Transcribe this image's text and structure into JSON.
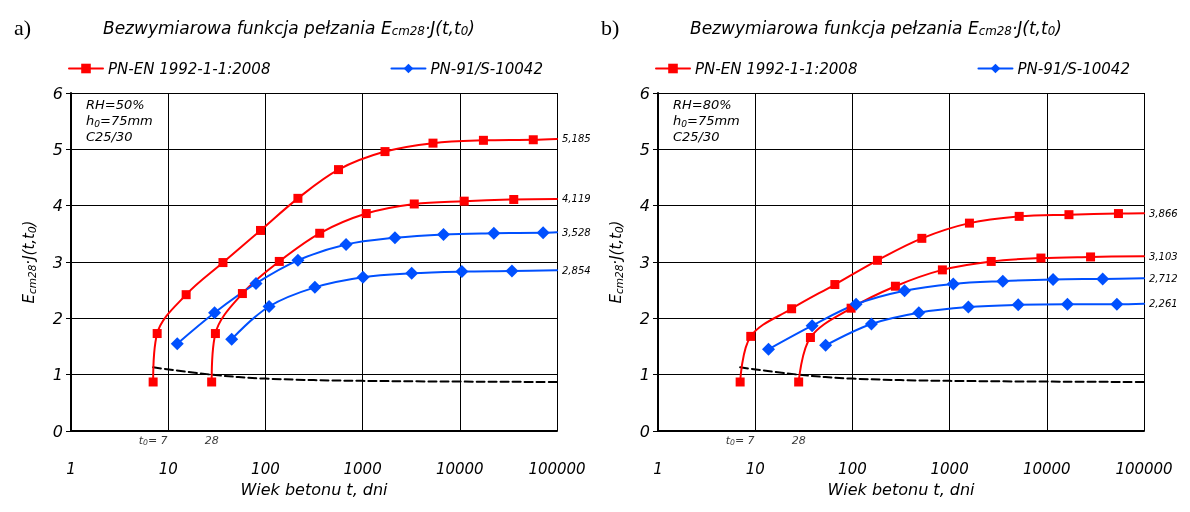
{
  "chart_data": [
    {
      "type": "line",
      "title": "Bezwymiarowa funkcja pełzania E$_{cm28}$·J(t,t$_{0}$)",
      "xlabel": "Wiek betonu t, dni",
      "ylabel": "E$_{cm28}$·J(t,t$_{0}$)",
      "log": "x",
      "xlim": [
        1,
        100000
      ],
      "xticks": [
        1,
        10,
        100,
        1000,
        10000,
        100000
      ],
      "ylim": [
        0,
        6
      ],
      "yticks": [
        0,
        1,
        2,
        3,
        4,
        5,
        6
      ],
      "grid": true,
      "legend": "top",
      "line_style": "solid",
      "series": [
        {
          "name": "PN-EN 1992-1-1:2008",
          "color": "#ff0000",
          "marker": "square",
          "x": [
            7,
            7.7,
            15.3,
            36.6,
            89,
            216,
            565,
            1700,
            5300,
            17500,
            57000,
            100000
          ],
          "values": [
            0.87,
            1.73,
            2.42,
            2.99,
            3.56,
            4.13,
            4.64,
            4.96,
            5.11,
            5.16,
            5.17,
            5.185
          ]
        },
        {
          "color": "#ff0000",
          "marker": "square",
          "x": [
            28,
            30.6,
            58,
            139,
            362,
            1090,
            3400,
            11100,
            35900,
            100000
          ],
          "values": [
            0.87,
            1.73,
            2.44,
            3.01,
            3.51,
            3.86,
            4.03,
            4.08,
            4.11,
            4.119
          ]
        },
        {
          "name": "PN-91/S-10042",
          "color": "#0050ff",
          "marker": "diamond",
          "x": [
            12.4,
            30,
            80,
            216,
            676,
            2150,
            6800,
            22400,
            72000,
            100000
          ],
          "values": [
            1.55,
            2.1,
            2.62,
            3.03,
            3.31,
            3.43,
            3.49,
            3.51,
            3.52,
            3.528
          ]
        },
        {
          "color": "#0050ff",
          "marker": "diamond",
          "x": [
            45,
            109,
            323,
            1010,
            3200,
            10500,
            34400,
            100000
          ],
          "values": [
            1.63,
            2.21,
            2.55,
            2.73,
            2.8,
            2.83,
            2.84,
            2.854
          ]
        },
        {
          "color": "#000000",
          "marker": "none",
          "line_style": "dashed",
          "x": [
            7,
            28,
            100,
            1000,
            100000
          ],
          "values": [
            1.13,
            1.0,
            0.93,
            0.89,
            0.87
          ]
        }
      ],
      "annotations": [
        "a)",
        "RH=50%",
        "h$_{0}$=75mm",
        "C25/30",
        "t$_{0}$= 7",
        "28",
        "5,185",
        "4,119",
        "3,528",
        "2,854"
      ]
    },
    {
      "type": "line",
      "title": "Bezwymiarowa funkcja pełzania E$_{cm28}$·J(t,t$_{0}$)",
      "xlabel": "Wiek betonu t, dni",
      "ylabel": "E$_{cm28}$·J(t,t$_{0}$)",
      "log": "x",
      "xlim": [
        1,
        100000
      ],
      "xticks": [
        1,
        10,
        100,
        1000,
        10000,
        100000
      ],
      "ylim": [
        0,
        6
      ],
      "yticks": [
        0,
        1,
        2,
        3,
        4,
        5,
        6
      ],
      "grid": true,
      "legend": "top",
      "line_style": "solid",
      "series": [
        {
          "name": "PN-EN 1992-1-1:2008",
          "color": "#ff0000",
          "marker": "square",
          "x": [
            7,
            9,
            23.7,
            66,
            181,
            518,
            1600,
            5200,
            16900,
            54600,
            100000
          ],
          "values": [
            0.87,
            1.68,
            2.17,
            2.6,
            3.03,
            3.42,
            3.69,
            3.81,
            3.84,
            3.86,
            3.866
          ]
        },
        {
          "color": "#ff0000",
          "marker": "square",
          "x": [
            28,
            37,
            97,
            277,
            843,
            2680,
            8700,
            28200,
            100000
          ],
          "values": [
            0.87,
            1.66,
            2.18,
            2.57,
            2.86,
            3.01,
            3.07,
            3.09,
            3.103
          ]
        },
        {
          "name": "PN-91/S-10042",
          "color": "#0050ff",
          "marker": "diamond",
          "x": [
            13.7,
            38.5,
            109,
            344,
            1090,
            3530,
            11600,
            37600,
            100000
          ],
          "values": [
            1.45,
            1.87,
            2.25,
            2.49,
            2.61,
            2.66,
            2.69,
            2.7,
            2.712
          ]
        },
        {
          "color": "#0050ff",
          "marker": "diamond",
          "x": [
            53,
            157,
            482,
            1560,
            5080,
            16300,
            52600,
            100000
          ],
          "values": [
            1.52,
            1.9,
            2.1,
            2.2,
            2.24,
            2.25,
            2.25,
            2.261
          ]
        },
        {
          "color": "#000000",
          "marker": "none",
          "line_style": "dashed",
          "x": [
            7,
            28,
            100,
            1000,
            100000
          ],
          "values": [
            1.13,
            1.0,
            0.93,
            0.89,
            0.87
          ]
        }
      ],
      "annotations": [
        "b)",
        "RH=80%",
        "h$_{0}$=75mm",
        "C25/30",
        "t$_{0}$= 7",
        "28",
        "3,866",
        "3,103",
        "2,712",
        "2,261"
      ]
    }
  ]
}
